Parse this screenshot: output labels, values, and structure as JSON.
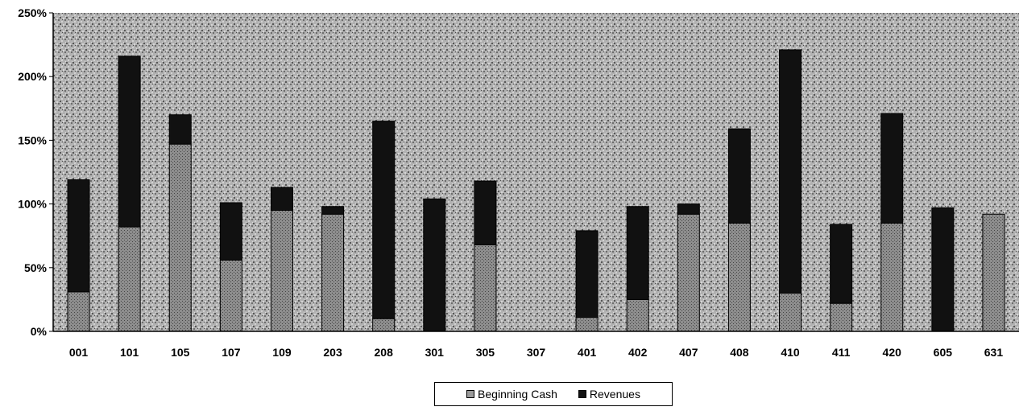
{
  "chart_data": {
    "type": "bar",
    "stacked": true,
    "categories": [
      "001",
      "101",
      "105",
      "107",
      "109",
      "203",
      "208",
      "301",
      "305",
      "307",
      "401",
      "402",
      "407",
      "408",
      "410",
      "411",
      "420",
      "605",
      "631"
    ],
    "series": [
      {
        "name": "Beginning Cash",
        "color": "#9a9a9a",
        "values": [
          31,
          82,
          147,
          56,
          95,
          92,
          10,
          0,
          68,
          0,
          11,
          25,
          92,
          85,
          30,
          22,
          85,
          0,
          92
        ]
      },
      {
        "name": "Revenues",
        "color": "#111111",
        "values": [
          88,
          134,
          23,
          45,
          18,
          6,
          155,
          104,
          50,
          0,
          68,
          73,
          8,
          74,
          191,
          62,
          86,
          97,
          0
        ]
      }
    ],
    "yticks": [
      "0%",
      "50%",
      "100%",
      "150%",
      "200%",
      "250%"
    ],
    "ylim": [
      0,
      250
    ],
    "legend_position": "bottom",
    "grid": false
  }
}
